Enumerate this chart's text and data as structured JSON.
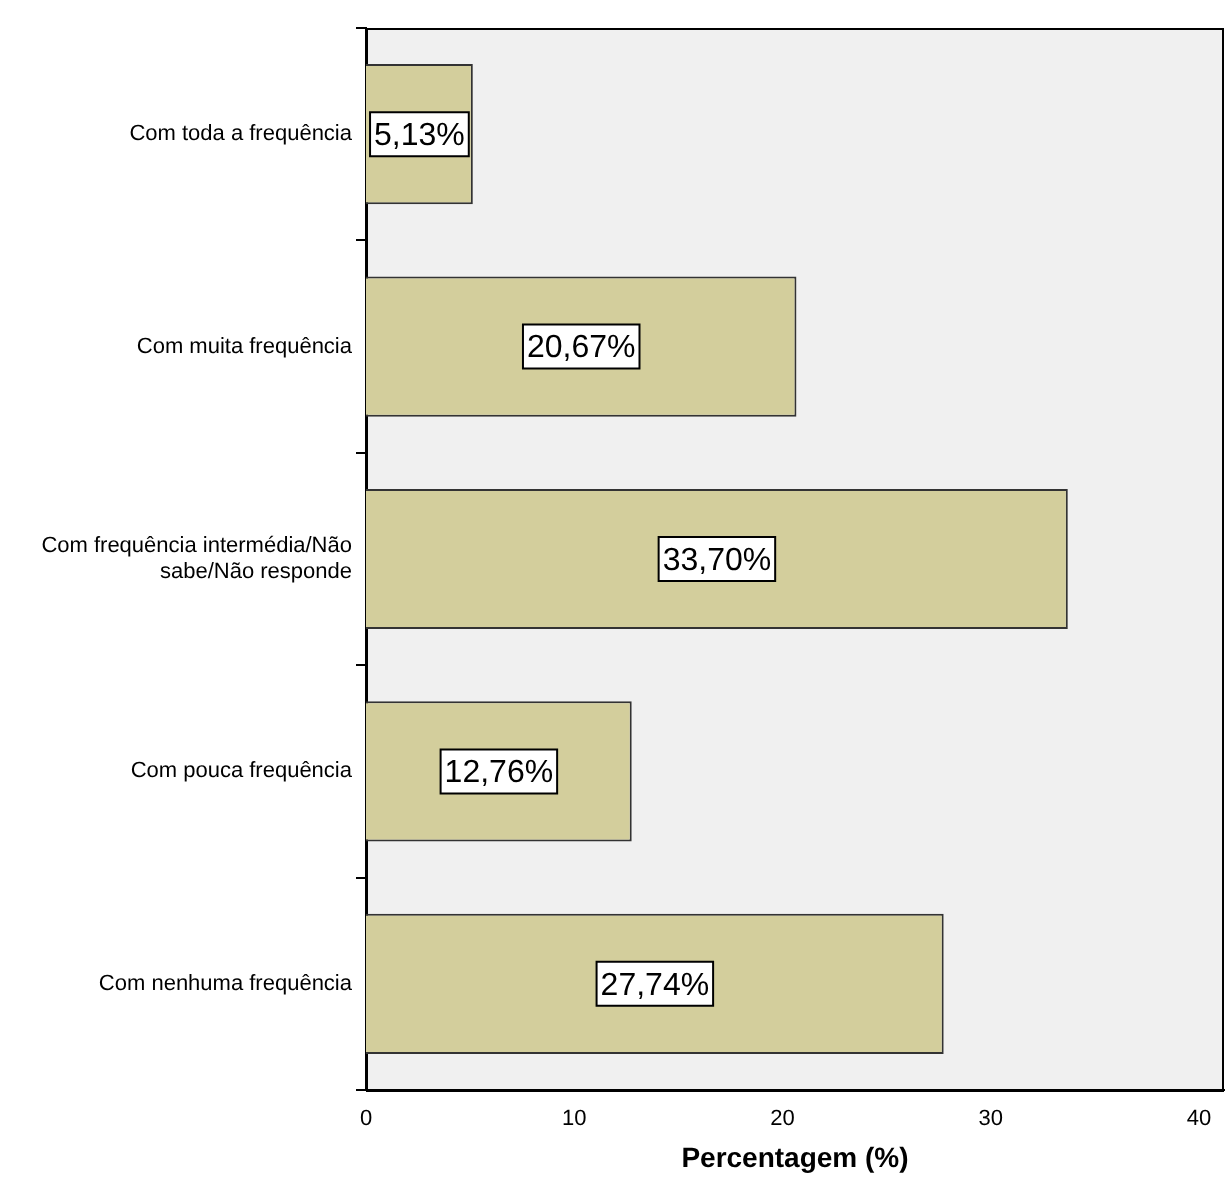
{
  "chart_data": {
    "type": "bar",
    "orientation": "horizontal",
    "xlabel": "Percentagem (%)",
    "categories": [
      "Com toda a frequência",
      "Com muita frequência",
      "Com frequência intermédia/Não sabe/Não responde",
      "Com pouca frequência",
      "Com nenhuma frequência"
    ],
    "values": [
      5.13,
      20.67,
      33.7,
      12.76,
      27.74
    ],
    "value_labels": [
      "5,13%",
      "20,67%",
      "33,70%",
      "12,76%",
      "27,74%"
    ],
    "color": "#d3ce9c",
    "xlim": [
      0,
      41.2
    ],
    "xticks": [
      0,
      10,
      20,
      30,
      40
    ],
    "grid": false,
    "legend": false
  }
}
